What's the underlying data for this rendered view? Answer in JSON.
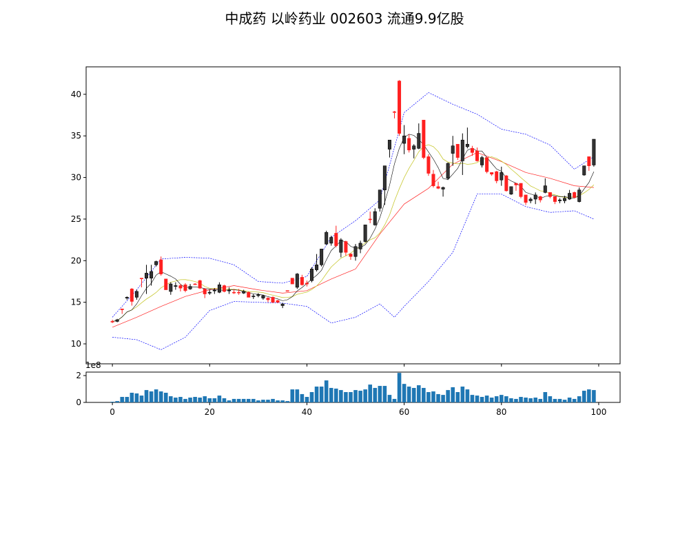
{
  "chart_data": {
    "type": "candlestick",
    "title": "中成药 以岭药业 002603 流通9.9亿股",
    "xlim": [
      -5.4,
      104.4
    ],
    "price_ylim": [
      7.6,
      43.3
    ],
    "price_yticks": [
      10,
      15,
      20,
      25,
      30,
      35,
      40
    ],
    "volume_ylim": [
      0,
      2.26
    ],
    "volume_yticks": [
      0,
      2
    ],
    "volume_offset_label": "1e8",
    "xticks": [
      0,
      20,
      40,
      60,
      80,
      100
    ],
    "colors": {
      "up": "#333333",
      "down": "#ff2020",
      "ma5": "#000000",
      "ma10": "#c8c832",
      "ma20": "#ff2020",
      "boll": "#0000ff",
      "volume": "#1f77b4"
    },
    "ohlc": [
      [
        12.7,
        12.9,
        12.5,
        12.7
      ],
      [
        12.7,
        13.0,
        12.6,
        12.9
      ],
      [
        14.2,
        14.2,
        13.6,
        14.1
      ],
      [
        15.5,
        15.7,
        15.3,
        15.6
      ],
      [
        16.6,
        16.7,
        14.6,
        15.1
      ],
      [
        15.6,
        16.5,
        15.3,
        16.3
      ],
      [
        17.9,
        17.9,
        16.8,
        17.9
      ],
      [
        17.9,
        19.5,
        16.0,
        18.5
      ],
      [
        17.9,
        19.5,
        17.0,
        18.7
      ],
      [
        19.5,
        20.0,
        19.3,
        19.9
      ],
      [
        20.1,
        20.5,
        18.2,
        18.4
      ],
      [
        17.8,
        17.8,
        16.5,
        16.5
      ],
      [
        16.3,
        17.4,
        15.9,
        17.2
      ],
      [
        16.9,
        17.4,
        16.5,
        17.0
      ],
      [
        17.0,
        17.2,
        16.3,
        16.7
      ],
      [
        17.1,
        17.3,
        16.2,
        16.4
      ],
      [
        16.6,
        17.2,
        16.5,
        16.9
      ],
      [
        17.2,
        17.3,
        17.1,
        17.2
      ],
      [
        17.6,
        17.7,
        16.6,
        16.7
      ],
      [
        16.6,
        16.7,
        15.5,
        16.0
      ],
      [
        16.1,
        16.5,
        15.9,
        16.2
      ],
      [
        16.4,
        16.7,
        16.0,
        16.45
      ],
      [
        16.2,
        17.4,
        16.1,
        17.1
      ],
      [
        17.0,
        17.1,
        16.2,
        16.3
      ],
      [
        16.4,
        16.8,
        16.0,
        16.45
      ],
      [
        16.2,
        16.6,
        16.0,
        16.2
      ],
      [
        16.2,
        16.6,
        15.9,
        16.2
      ],
      [
        16.1,
        16.5,
        16.0,
        16.3
      ],
      [
        16.2,
        16.3,
        15.6,
        15.6
      ],
      [
        15.7,
        16.0,
        15.4,
        15.75
      ],
      [
        15.8,
        16.1,
        15.6,
        15.9
      ],
      [
        15.5,
        15.9,
        15.3,
        15.8
      ],
      [
        15.5,
        15.6,
        15.0,
        15.3
      ],
      [
        15.6,
        15.7,
        14.9,
        15.0
      ],
      [
        15.2,
        15.3,
        14.9,
        15.0
      ],
      [
        14.6,
        14.9,
        14.3,
        14.8
      ],
      [
        16.4,
        16.4,
        16.4,
        16.4
      ],
      [
        17.9,
        17.9,
        17.2,
        17.2
      ],
      [
        16.8,
        18.5,
        16.6,
        18.4
      ],
      [
        18.0,
        18.3,
        17.0,
        17.1
      ],
      [
        17.3,
        17.6,
        16.9,
        17.2
      ],
      [
        17.6,
        19.2,
        17.4,
        19.0
      ],
      [
        18.9,
        20.8,
        18.7,
        19.5
      ],
      [
        19.5,
        21.4,
        19.3,
        21.4
      ],
      [
        22.0,
        23.6,
        21.9,
        23.4
      ],
      [
        22.1,
        23.0,
        21.8,
        22.8
      ],
      [
        23.3,
        24.2,
        21.6,
        21.8
      ],
      [
        21.0,
        22.7,
        20.4,
        22.5
      ],
      [
        22.3,
        22.4,
        20.6,
        21.0
      ],
      [
        20.8,
        20.9,
        20.1,
        20.5
      ],
      [
        20.5,
        22.0,
        20.0,
        21.7
      ],
      [
        21.4,
        22.4,
        20.9,
        22.1
      ],
      [
        22.3,
        24.3,
        22.2,
        24.3
      ],
      [
        25.0,
        25.9,
        24.5,
        25.0
      ],
      [
        24.3,
        26.3,
        24.2,
        25.9
      ],
      [
        26.3,
        28.5,
        25.9,
        28.5
      ],
      [
        28.5,
        31.4,
        26.7,
        31.4
      ],
      [
        33.4,
        34.5,
        32.4,
        34.5
      ],
      [
        37.9,
        38.0,
        37.1,
        37.9
      ],
      [
        41.6,
        41.7,
        35.0,
        35.3
      ],
      [
        34.1,
        36.3,
        32.8,
        35.0
      ],
      [
        34.7,
        35.2,
        33.0,
        33.3
      ],
      [
        33.4,
        34.0,
        32.3,
        33.8
      ],
      [
        33.5,
        36.5,
        33.4,
        35.3
      ],
      [
        36.9,
        36.9,
        32.2,
        32.4
      ],
      [
        32.5,
        32.8,
        30.2,
        30.5
      ],
      [
        30.4,
        30.9,
        28.8,
        29.0
      ],
      [
        28.9,
        29.5,
        28.6,
        28.7
      ],
      [
        28.6,
        28.9,
        27.7,
        28.8
      ],
      [
        29.9,
        31.8,
        29.7,
        31.7
      ],
      [
        32.9,
        35.0,
        31.4,
        33.8
      ],
      [
        34.0,
        34.0,
        32.1,
        32.4
      ],
      [
        32.0,
        35.3,
        30.3,
        34.5
      ],
      [
        33.7,
        36.0,
        33.5,
        34.0
      ],
      [
        33.5,
        33.8,
        32.6,
        33.0
      ],
      [
        33.2,
        33.6,
        31.9,
        32.0
      ],
      [
        31.5,
        32.6,
        31.2,
        32.4
      ],
      [
        32.4,
        32.4,
        30.5,
        30.7
      ],
      [
        30.6,
        30.6,
        30.2,
        30.4
      ],
      [
        30.7,
        30.8,
        29.3,
        29.6
      ],
      [
        29.7,
        31.3,
        29.0,
        30.6
      ],
      [
        30.2,
        30.3,
        28.3,
        28.4
      ],
      [
        28.0,
        28.9,
        27.9,
        28.9
      ],
      [
        29.3,
        29.3,
        28.4,
        29.1
      ],
      [
        29.3,
        29.3,
        27.5,
        27.7
      ],
      [
        27.9,
        27.9,
        26.7,
        27.0
      ],
      [
        27.2,
        27.6,
        26.9,
        27.4
      ],
      [
        27.4,
        28.2,
        26.8,
        27.9
      ],
      [
        27.7,
        27.8,
        27.0,
        27.3
      ],
      [
        28.2,
        29.9,
        28.1,
        29.0
      ],
      [
        28.2,
        28.2,
        27.5,
        27.7
      ],
      [
        27.7,
        27.7,
        26.8,
        27.1
      ],
      [
        27.2,
        27.5,
        26.9,
        27.3
      ],
      [
        27.2,
        27.8,
        26.9,
        27.5
      ],
      [
        27.4,
        28.5,
        27.3,
        28.1
      ],
      [
        28.2,
        28.3,
        27.5,
        27.6
      ],
      [
        27.1,
        28.8,
        27.0,
        28.5
      ],
      [
        30.3,
        31.4,
        30.2,
        31.4
      ],
      [
        32.5,
        32.5,
        30.8,
        31.4
      ],
      [
        31.5,
        34.6,
        31.3,
        34.6
      ]
    ],
    "volume": [
      0.05,
      0.1,
      0.41,
      0.41,
      0.72,
      0.67,
      0.51,
      0.92,
      0.82,
      0.97,
      0.82,
      0.72,
      0.46,
      0.36,
      0.41,
      0.26,
      0.36,
      0.41,
      0.36,
      0.46,
      0.31,
      0.31,
      0.51,
      0.31,
      0.15,
      0.26,
      0.26,
      0.26,
      0.26,
      0.26,
      0.15,
      0.2,
      0.2,
      0.26,
      0.15,
      0.15,
      0.1,
      0.97,
      0.97,
      0.62,
      0.41,
      0.77,
      1.18,
      1.18,
      1.64,
      1.08,
      1.03,
      0.92,
      0.77,
      0.77,
      0.92,
      0.87,
      0.97,
      1.33,
      1.08,
      1.23,
      1.23,
      0.56,
      0.26,
      2.2,
      1.38,
      1.18,
      1.08,
      1.28,
      1.08,
      0.77,
      0.82,
      0.62,
      0.56,
      0.92,
      1.13,
      0.77,
      1.18,
      0.97,
      0.56,
      0.51,
      0.41,
      0.51,
      0.36,
      0.46,
      0.56,
      0.46,
      0.31,
      0.26,
      0.41,
      0.36,
      0.31,
      0.36,
      0.26,
      0.77,
      0.46,
      0.26,
      0.26,
      0.2,
      0.36,
      0.26,
      0.46,
      0.87,
      0.97,
      0.92
    ],
    "ma20_sampled": {
      "x": [
        0,
        5,
        10,
        15,
        20,
        25,
        30,
        35,
        40,
        45,
        50,
        55,
        60,
        65,
        70,
        75,
        80,
        85,
        90,
        95,
        99
      ],
      "y": [
        12.0,
        13.2,
        14.5,
        15.7,
        16.5,
        17.0,
        16.5,
        16.1,
        16.4,
        17.8,
        19.0,
        23.2,
        26.8,
        28.7,
        31.6,
        33.0,
        31.9,
        30.6,
        29.9,
        29.0,
        28.8
      ]
    },
    "boll_upper_sampled": {
      "x": [
        0,
        5,
        10,
        15,
        20,
        25,
        30,
        35,
        40,
        45,
        50,
        55,
        60,
        65,
        70,
        75,
        80,
        85,
        90,
        95,
        99
      ],
      "y": [
        13.2,
        16.5,
        20.2,
        20.4,
        20.3,
        19.5,
        17.5,
        17.3,
        18.1,
        22.8,
        24.8,
        27.3,
        37.8,
        40.2,
        38.8,
        37.6,
        35.8,
        35.2,
        33.9,
        31.0,
        32.5
      ]
    },
    "boll_lower_sampled": {
      "x": [
        0,
        5,
        10,
        15,
        20,
        25,
        30,
        35,
        40,
        45,
        50,
        55,
        58,
        60,
        65,
        70,
        75,
        80,
        85,
        90,
        95,
        99
      ],
      "y": [
        10.8,
        10.5,
        9.3,
        10.8,
        14.0,
        15.1,
        15.0,
        14.9,
        14.5,
        12.5,
        13.2,
        14.8,
        13.2,
        14.5,
        17.5,
        21.0,
        28.0,
        28.0,
        26.5,
        25.8,
        26.0,
        25.0
      ]
    }
  }
}
